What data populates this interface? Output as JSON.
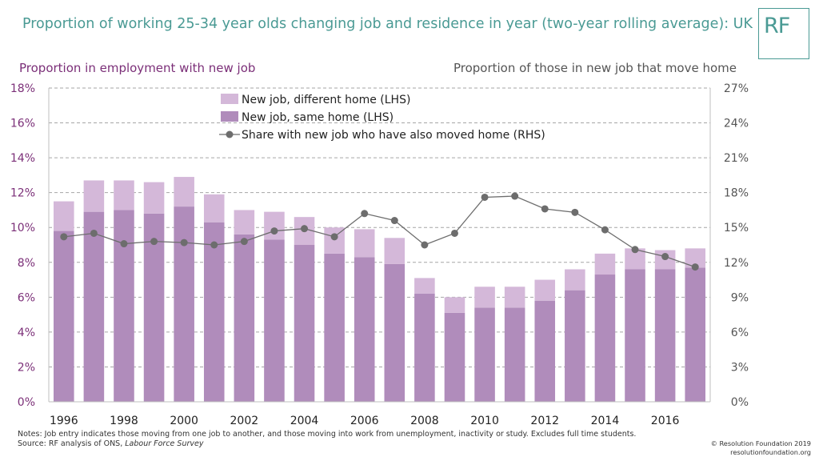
{
  "header": {
    "title": "Proportion of working 25-34 year olds changing job and residence in year (two-year rolling average): UK",
    "logo_text": "RF"
  },
  "chart_data": {
    "type": "bar",
    "stacked": true,
    "lhs_title": "Proportion in employment with new job",
    "rhs_title": "Proportion of those in new job that move home",
    "categories": [
      "1996",
      "1997",
      "1998",
      "1999",
      "2000",
      "2001",
      "2002",
      "2003",
      "2004",
      "2005",
      "2006",
      "2007",
      "2008",
      "2009",
      "2010",
      "2011",
      "2012",
      "2013",
      "2014",
      "2015",
      "2016",
      "2017"
    ],
    "x_tick_labels": [
      "1996",
      "1998",
      "2000",
      "2002",
      "2004",
      "2006",
      "2008",
      "2010",
      "2012",
      "2014",
      "2016"
    ],
    "ylim_left": [
      0,
      18
    ],
    "y_ticks_left": [
      "0%",
      "2%",
      "4%",
      "6%",
      "8%",
      "10%",
      "12%",
      "14%",
      "16%",
      "18%"
    ],
    "ylim_right": [
      0,
      27
    ],
    "y_ticks_right": [
      "0%",
      "3%",
      "6%",
      "9%",
      "12%",
      "15%",
      "18%",
      "21%",
      "24%",
      "27%"
    ],
    "grid": true,
    "legend_position": "top-center",
    "series": [
      {
        "name": "New job, same home (LHS)",
        "axis": "left",
        "kind": "bar",
        "color": "#b08cbb",
        "values": [
          9.8,
          10.9,
          11.0,
          10.8,
          11.2,
          10.3,
          9.6,
          9.3,
          9.0,
          8.5,
          8.3,
          7.9,
          6.2,
          5.1,
          5.4,
          5.4,
          5.8,
          6.4,
          7.3,
          7.6,
          7.6,
          7.7
        ]
      },
      {
        "name": "New job, different home (LHS)",
        "axis": "left",
        "kind": "bar",
        "color": "#d4b8d9",
        "values": [
          1.7,
          1.8,
          1.7,
          1.8,
          1.7,
          1.6,
          1.4,
          1.6,
          1.6,
          1.5,
          1.6,
          1.5,
          0.9,
          0.9,
          1.2,
          1.2,
          1.2,
          1.2,
          1.2,
          1.2,
          1.1,
          1.1
        ]
      },
      {
        "name": "Share with new job who have also moved home (RHS)",
        "axis": "right",
        "kind": "line",
        "color": "#6d6d6d",
        "values": [
          14.2,
          14.5,
          13.6,
          13.8,
          13.7,
          13.5,
          13.8,
          14.7,
          14.9,
          14.2,
          16.2,
          15.6,
          13.5,
          14.5,
          17.6,
          17.7,
          16.6,
          16.3,
          14.8,
          13.1,
          12.5,
          11.6
        ]
      }
    ]
  },
  "footer": {
    "notes_line": "Notes: Job entry indicates those moving from one job to another, and those moving into work from unemployment, inactivity or study. Excludes full time students.",
    "source_prefix": "Source: RF analysis of ONS, ",
    "source_italic": "Labour Force Survey",
    "copyright": "© Resolution Foundation 2019",
    "website": "resolutionfoundation.org"
  }
}
